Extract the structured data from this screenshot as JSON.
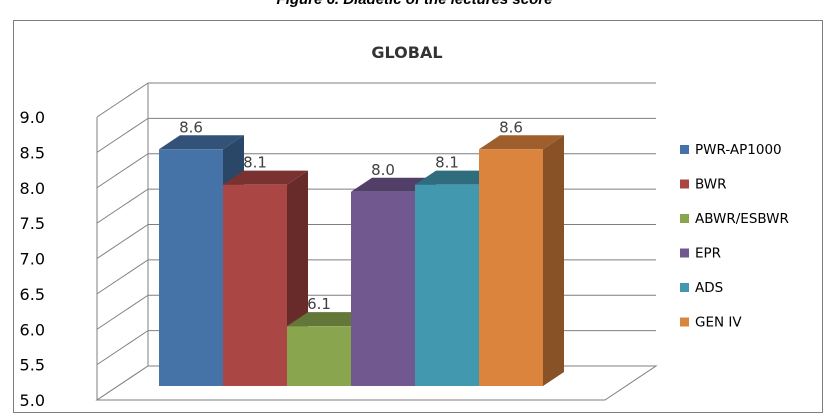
{
  "figure_caption": "Figure 6. Diadetic of the lectures score",
  "chart_data": {
    "type": "bar",
    "title": "GLOBAL",
    "xlabel": "",
    "ylabel": "",
    "ylim": [
      5.0,
      9.0
    ],
    "yticks": [
      "5.0",
      "5.5",
      "6.0",
      "6.5",
      "7.0",
      "7.5",
      "8.0",
      "8.5",
      "9.0"
    ],
    "grid": true,
    "legend_position": "right",
    "three_d": true,
    "series": [
      {
        "name": "PWR-AP1000",
        "value": 8.6,
        "label": "8.6",
        "color": "#4572a7"
      },
      {
        "name": "BWR",
        "value": 8.1,
        "label": "8.1",
        "color": "#aa4643"
      },
      {
        "name": "ABWR/ESBWR",
        "value": 6.1,
        "label": "6.1",
        "color": "#89a54e"
      },
      {
        "name": "EPR",
        "value": 8.0,
        "label": "8.0",
        "color": "#71588f"
      },
      {
        "name": "ADS",
        "value": 8.1,
        "label": "8.1",
        "color": "#4198af"
      },
      {
        "name": "GEN IV",
        "value": 8.6,
        "label": "8.6",
        "color": "#db843d"
      }
    ]
  }
}
